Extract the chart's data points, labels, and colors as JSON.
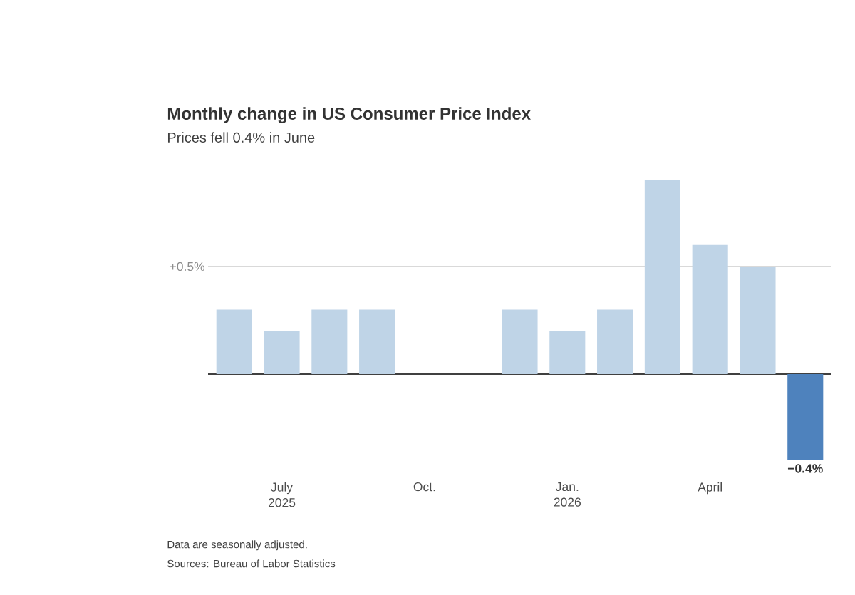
{
  "chart_data": {
    "type": "bar",
    "title": "Monthly change in US Consumer Price Index",
    "subtitle": "Prices fell 0.4% in June",
    "categories": [
      null,
      "July 2025",
      null,
      null,
      "Oct.",
      null,
      null,
      "Jan. 2026",
      null,
      null,
      "April",
      null,
      null
    ],
    "values": [
      0.3,
      0.2,
      0.3,
      0.3,
      null,
      null,
      0.3,
      0.2,
      0.3,
      0.9,
      0.6,
      0.5,
      -0.4
    ],
    "colors": [
      "#bfd4e7",
      "#bfd4e7",
      "#bfd4e7",
      "#bfd4e7",
      "#bfd4e7",
      "#bfd4e7",
      "#bfd4e7",
      "#bfd4e7",
      "#bfd4e7",
      "#bfd4e7",
      "#bfd4e7",
      "#bfd4e7",
      "#4e82bd"
    ],
    "value_labels": [
      null,
      null,
      null,
      null,
      null,
      null,
      null,
      null,
      null,
      null,
      null,
      null,
      "−0.4%"
    ],
    "ref_lines": [
      {
        "axis": "y",
        "value": 0.5,
        "label": "+0.5%",
        "color": "#cccccc"
      }
    ],
    "annotations": [
      "Data are seasonally adjusted.",
      "Sources: Bureau of Labor Statistics"
    ]
  }
}
